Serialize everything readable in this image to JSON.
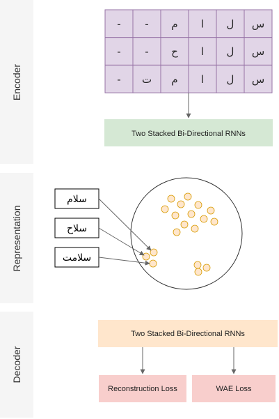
{
  "sections": {
    "encoder": "Encoder",
    "representation": "Representation",
    "decoder": "Decoder"
  },
  "encoder": {
    "grid": [
      [
        "-",
        "-",
        "م",
        "ا",
        "ل",
        "س"
      ],
      [
        "-",
        "-",
        "ح",
        "ا",
        "ل",
        "س"
      ],
      [
        "-",
        "ت",
        "م",
        "ا",
        "ل",
        "س"
      ]
    ],
    "rnn_label": "Two Stacked Bi-Directional RNNs"
  },
  "representation": {
    "words": [
      "سلام",
      "سلاح",
      "سلامت"
    ]
  },
  "decoder": {
    "rnn_label": "Two Stacked Bi-Directional RNNs",
    "loss_1": "Reconstruction Loss",
    "loss_2": "WAE Loss"
  },
  "colors": {
    "lane_bg": "#f5f5f5",
    "grid_fill": "#e1d5e7",
    "grid_stroke": "#9673a6",
    "rnn_green": "#d5e8d4",
    "rnn_orange": "#ffe6cc",
    "loss_pink": "#f8cecc",
    "dot_fill": "#ffe6cc",
    "dot_stroke": "#d79b00"
  }
}
